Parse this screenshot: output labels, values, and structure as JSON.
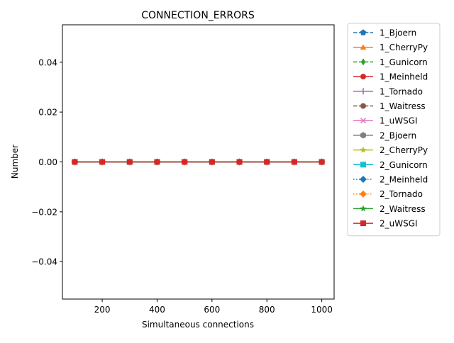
{
  "chart_data": {
    "type": "line",
    "title": "CONNECTION_ERRORS",
    "xlabel": "Simultaneous connections",
    "ylabel": "Number",
    "x": [
      100,
      200,
      300,
      400,
      500,
      600,
      700,
      800,
      900,
      1000
    ],
    "xlim": [
      55,
      1045
    ],
    "ylim": [
      -0.055,
      0.055
    ],
    "xticks": [
      200,
      400,
      600,
      800,
      1000
    ],
    "xtick_labels": [
      "200",
      "400",
      "600",
      "800",
      "1000"
    ],
    "yticks": [
      -0.04,
      -0.02,
      0.0,
      0.02,
      0.04
    ],
    "ytick_labels": [
      "−0.04",
      "−0.02",
      "0.00",
      "0.02",
      "0.04"
    ],
    "grid": false,
    "legend_position": "outside-right",
    "series": [
      {
        "name": "1_Bjoern",
        "color": "#1f77b4",
        "marker": "pentagon",
        "linestyle": "dashed",
        "values": [
          0,
          0,
          0,
          0,
          0,
          0,
          0,
          0,
          0,
          0
        ]
      },
      {
        "name": "1_CherryPy",
        "color": "#ff7f0e",
        "marker": "triangle-up",
        "linestyle": "solid",
        "values": [
          0,
          0,
          0,
          0,
          0,
          0,
          0,
          0,
          0,
          0
        ]
      },
      {
        "name": "1_Gunicorn",
        "color": "#2ca02c",
        "marker": "thin-diamond",
        "linestyle": "dashed",
        "values": [
          0,
          0,
          0,
          0,
          0,
          0,
          0,
          0,
          0,
          0
        ]
      },
      {
        "name": "1_Meinheld",
        "color": "#d62728",
        "marker": "circle",
        "linestyle": "solid",
        "values": [
          0,
          0,
          0,
          0,
          0,
          0,
          0,
          0,
          0,
          0
        ]
      },
      {
        "name": "1_Tornado",
        "color": "#9467bd",
        "marker": "plus",
        "linestyle": "solid",
        "values": [
          0,
          0,
          0,
          0,
          0,
          0,
          0,
          0,
          0,
          0
        ]
      },
      {
        "name": "1_Waitress",
        "color": "#8c564b",
        "marker": "circle",
        "linestyle": "dashed",
        "values": [
          0,
          0,
          0,
          0,
          0,
          0,
          0,
          0,
          0,
          0
        ]
      },
      {
        "name": "1_uWSGI",
        "color": "#e377c2",
        "marker": "x",
        "linestyle": "solid",
        "values": [
          0,
          0,
          0,
          0,
          0,
          0,
          0,
          0,
          0,
          0
        ]
      },
      {
        "name": "2_Bjoern",
        "color": "#7f7f7f",
        "marker": "hexagon",
        "linestyle": "solid",
        "values": [
          0,
          0,
          0,
          0,
          0,
          0,
          0,
          0,
          0,
          0
        ]
      },
      {
        "name": "2_CherryPy",
        "color": "#bcbd22",
        "marker": "star",
        "linestyle": "solid",
        "values": [
          0,
          0,
          0,
          0,
          0,
          0,
          0,
          0,
          0,
          0
        ]
      },
      {
        "name": "2_Gunicorn",
        "color": "#17becf",
        "marker": "square",
        "linestyle": "solid",
        "values": [
          0,
          0,
          0,
          0,
          0,
          0,
          0,
          0,
          0,
          0
        ]
      },
      {
        "name": "2_Meinheld",
        "color": "#1f77b4",
        "marker": "diamond",
        "linestyle": "dotted",
        "values": [
          0,
          0,
          0,
          0,
          0,
          0,
          0,
          0,
          0,
          0
        ]
      },
      {
        "name": "2_Tornado",
        "color": "#ff7f0e",
        "marker": "diamond",
        "linestyle": "dotted",
        "values": [
          0,
          0,
          0,
          0,
          0,
          0,
          0,
          0,
          0,
          0
        ]
      },
      {
        "name": "2_Waitress",
        "color": "#2ca02c",
        "marker": "star",
        "linestyle": "solid",
        "values": [
          0,
          0,
          0,
          0,
          0,
          0,
          0,
          0,
          0,
          0
        ]
      },
      {
        "name": "2_uWSGI",
        "color": "#d62728",
        "marker": "square",
        "linestyle": "solid",
        "values": [
          0,
          0,
          0,
          0,
          0,
          0,
          0,
          0,
          0,
          0
        ]
      }
    ]
  }
}
